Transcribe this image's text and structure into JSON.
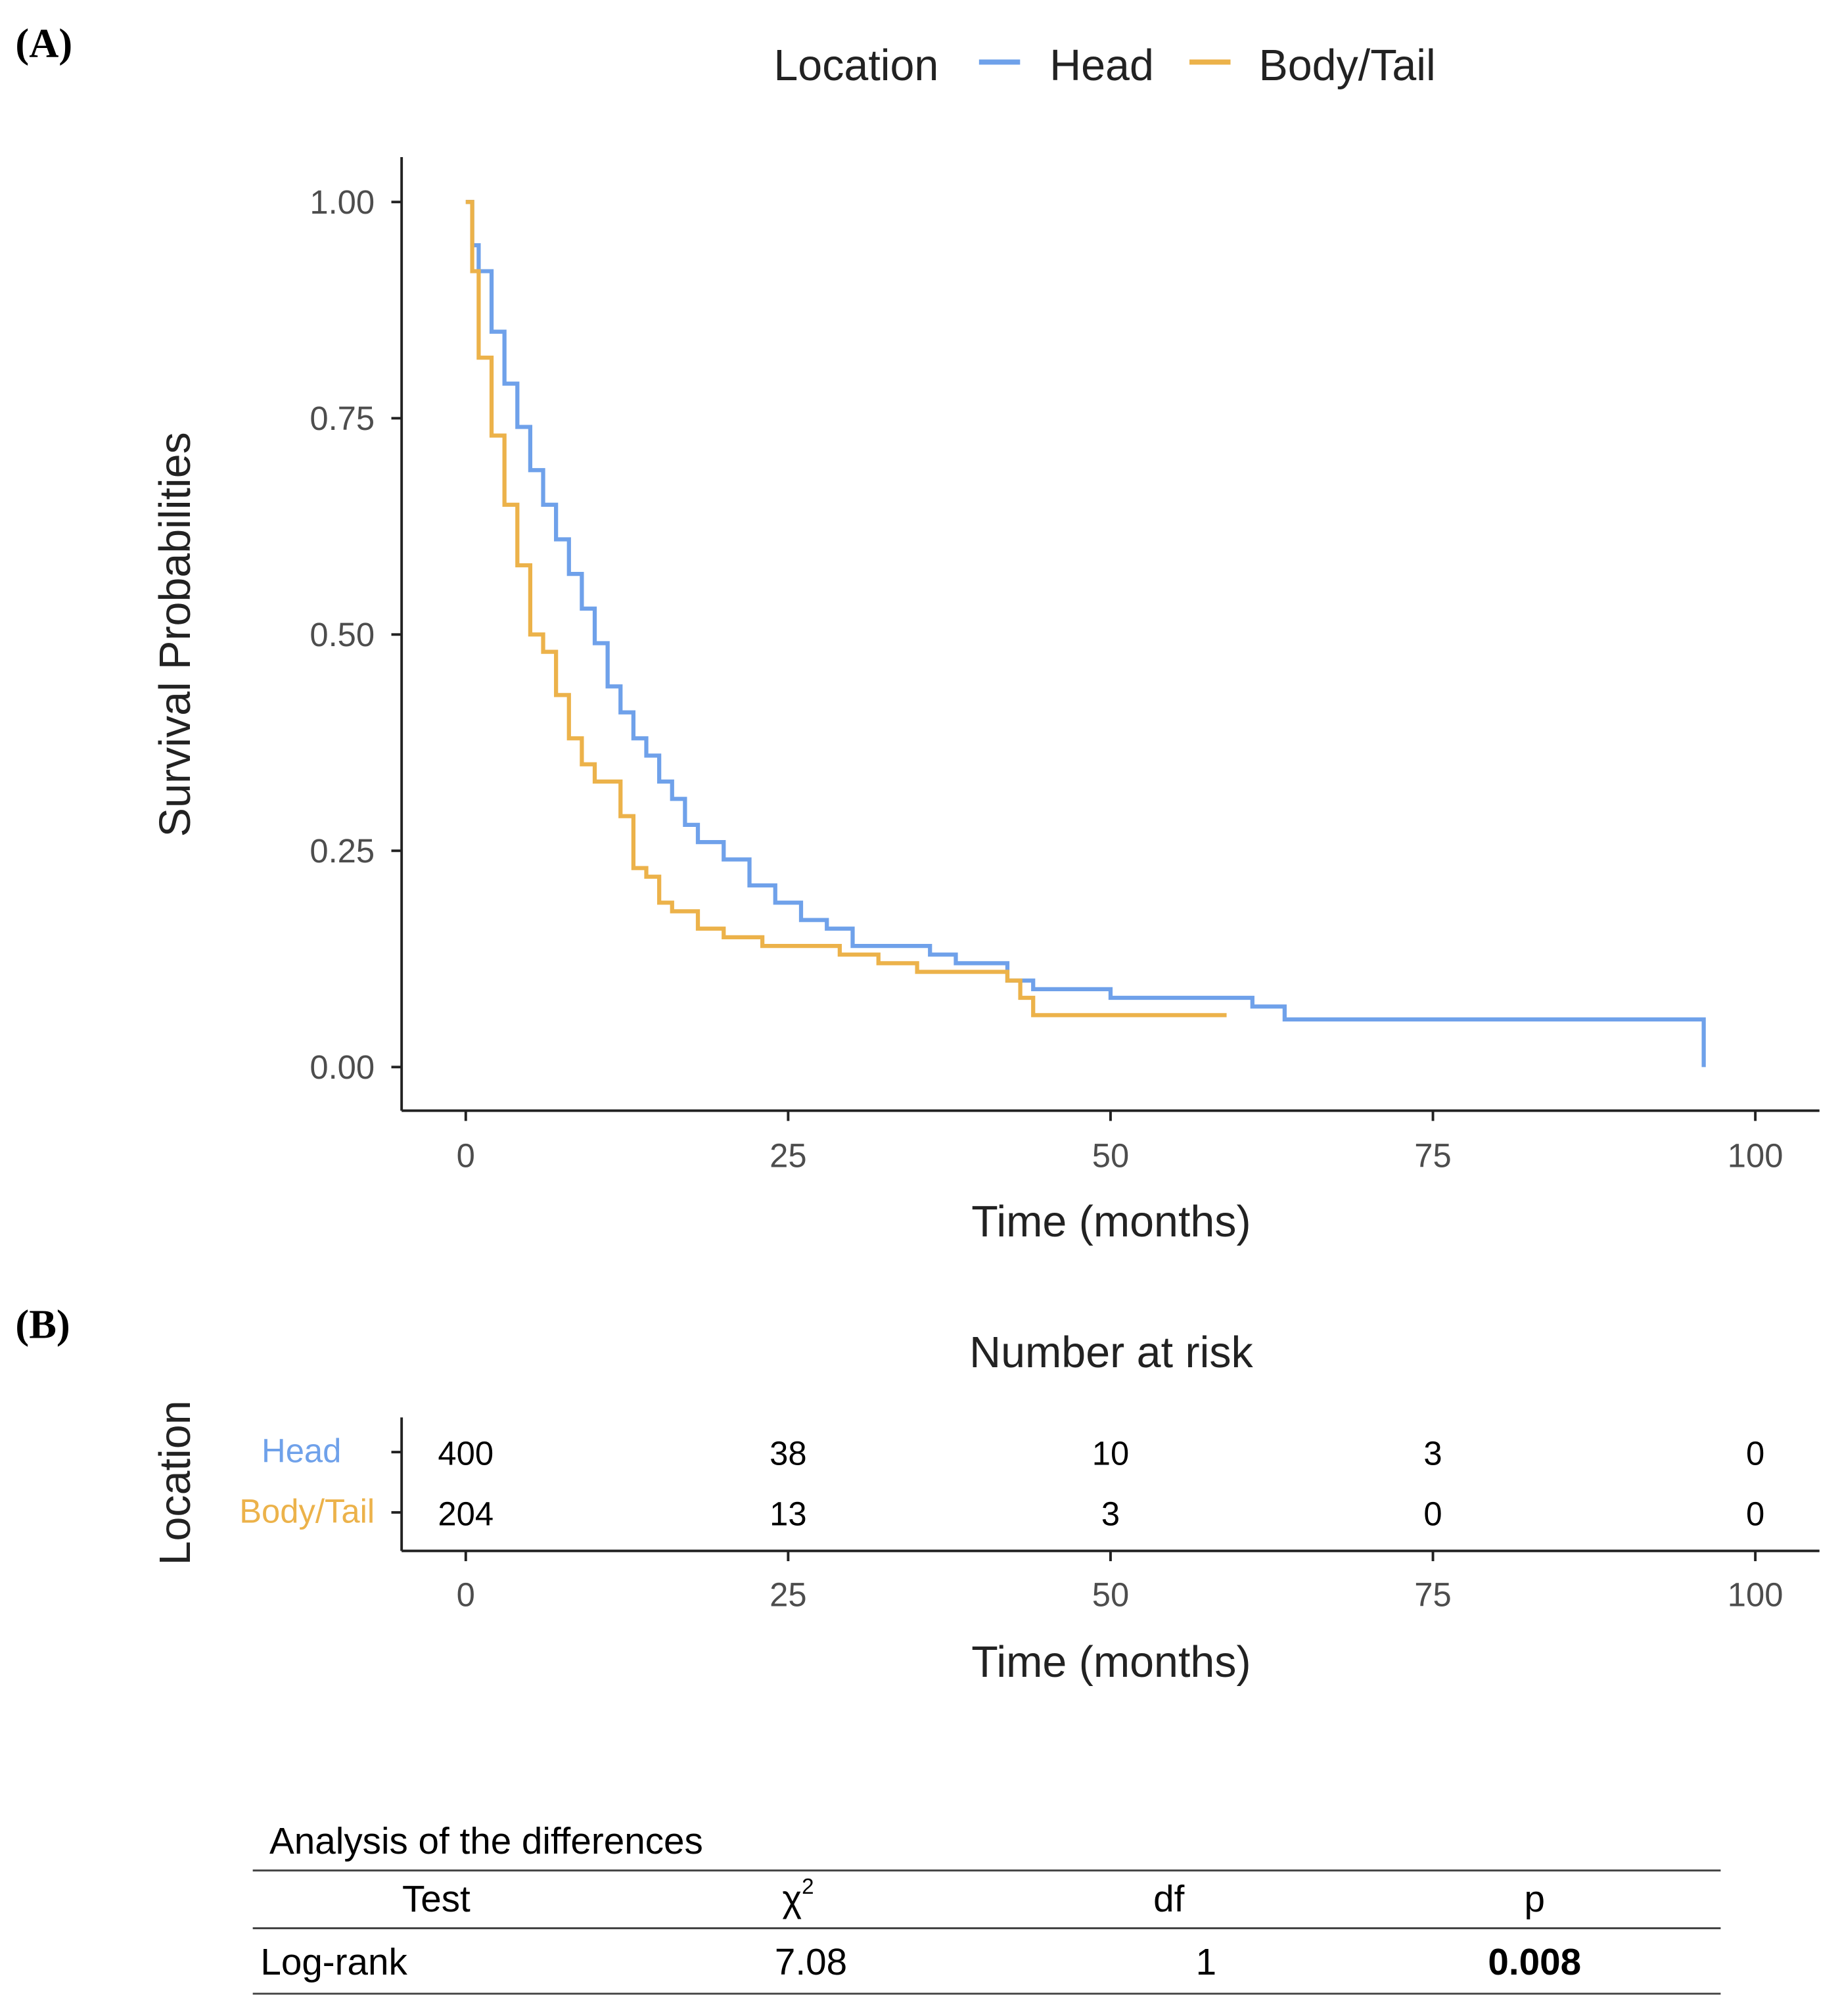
{
  "panels": {
    "a": "(A)",
    "b": "(B)"
  },
  "colors": {
    "head": "#6fa1ea",
    "body_tail": "#ecb24a",
    "axis": "#222222"
  },
  "chart_data": {
    "type": "line",
    "subtype": "kaplan-meier step",
    "title": "",
    "xlabel": "Time (months)",
    "ylabel": "Survival Probabilities",
    "xlim": [
      0,
      100
    ],
    "ylim": [
      0,
      1
    ],
    "xticks": [
      0,
      25,
      50,
      75,
      100
    ],
    "yticks": [
      0,
      0.25,
      0.5,
      0.75,
      1.0
    ],
    "ytick_labels": [
      "0.00",
      "0.25",
      "0.50",
      "0.75",
      "1.00"
    ],
    "legend": {
      "title": "Location",
      "placement": "top",
      "entries": [
        "Head",
        "Body/Tail"
      ]
    },
    "series": [
      {
        "name": "Head",
        "color": "#6fa1ea",
        "x": [
          0,
          0.5,
          1,
          2,
          3,
          4,
          5,
          6,
          7,
          8,
          9,
          10,
          11,
          12,
          13,
          14,
          15,
          16,
          17,
          18,
          20,
          22,
          24,
          26,
          28,
          30,
          36,
          38,
          42,
          44,
          50,
          61,
          63.5,
          96,
          96
        ],
        "y": [
          1.0,
          0.95,
          0.92,
          0.85,
          0.79,
          0.74,
          0.69,
          0.65,
          0.61,
          0.57,
          0.53,
          0.49,
          0.44,
          0.41,
          0.38,
          0.36,
          0.33,
          0.31,
          0.28,
          0.26,
          0.24,
          0.21,
          0.19,
          0.17,
          0.16,
          0.14,
          0.13,
          0.12,
          0.1,
          0.09,
          0.08,
          0.07,
          0.055,
          0.055,
          0.0
        ]
      },
      {
        "name": "Body/Tail",
        "color": "#ecb24a",
        "x": [
          0,
          0.5,
          1,
          2,
          3,
          4,
          5,
          6,
          7,
          8,
          9,
          10,
          12,
          13,
          14,
          15,
          16,
          18,
          20,
          23,
          29,
          32,
          35,
          42,
          43,
          44,
          59
        ],
        "y": [
          1.0,
          0.92,
          0.82,
          0.73,
          0.65,
          0.58,
          0.5,
          0.48,
          0.43,
          0.38,
          0.35,
          0.33,
          0.29,
          0.23,
          0.22,
          0.19,
          0.18,
          0.16,
          0.15,
          0.14,
          0.13,
          0.12,
          0.11,
          0.1,
          0.08,
          0.06,
          0.06
        ]
      }
    ]
  },
  "risk_table": {
    "title": "Number at risk",
    "ylabel": "Location",
    "xlabel": "Time (months)",
    "times": [
      0,
      25,
      50,
      75,
      100
    ],
    "rows": [
      {
        "name": "Head",
        "values": [
          "400",
          "38",
          "10",
          "3",
          "0"
        ]
      },
      {
        "name": "Body/Tail",
        "values": [
          "204",
          "13",
          "3",
          "0",
          "0"
        ]
      }
    ]
  },
  "stats": {
    "caption": "Analysis of the differences",
    "headers": [
      "Test",
      "χ",
      "df",
      "p"
    ],
    "chi_superscript": "2",
    "row": [
      "Log-rank",
      "7.08",
      "1",
      "0.008"
    ]
  }
}
